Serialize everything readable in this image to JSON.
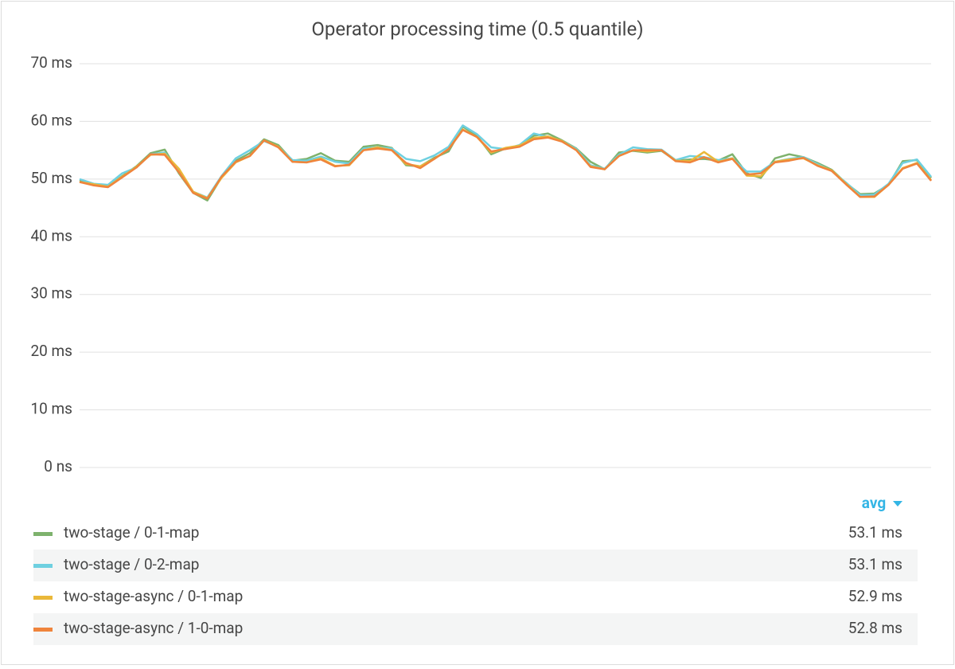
{
  "chart_data": {
    "type": "line",
    "title": "Operator processing time (0.5 quantile)",
    "ylim": [
      0,
      70
    ],
    "yticks": [
      {
        "value": 0,
        "label": "0 ns"
      },
      {
        "value": 10,
        "label": "10 ms"
      },
      {
        "value": 20,
        "label": "20 ms"
      },
      {
        "value": 30,
        "label": "30 ms"
      },
      {
        "value": 40,
        "label": "40 ms"
      },
      {
        "value": 50,
        "label": "50 ms"
      },
      {
        "value": 60,
        "label": "60 ms"
      },
      {
        "value": 70,
        "label": "70 ms"
      }
    ],
    "grid": true,
    "series": [
      {
        "name": "two-stage / 0-1-map",
        "color": "#7eb26d",
        "values": [
          49.8,
          49.0,
          48.7,
          50.5,
          52.2,
          54.5,
          55.1,
          51.0,
          47.6,
          46.3,
          50.3,
          53.2,
          54.5,
          56.9,
          55.9,
          53.2,
          53.5,
          54.5,
          53.2,
          53.0,
          55.6,
          55.9,
          55.4,
          52.4,
          52.2,
          53.7,
          54.8,
          59.1,
          57.5,
          54.3,
          55.3,
          55.8,
          57.5,
          57.9,
          56.7,
          55.3,
          53.0,
          51.7,
          54.6,
          54.9,
          54.6,
          54.9,
          53.2,
          53.4,
          53.5,
          53.2,
          54.3,
          51.0,
          50.2,
          53.6,
          54.3,
          53.8,
          52.8,
          51.6,
          49.3,
          47.4,
          47.5,
          49.0,
          53.1,
          53.3,
          50.2
        ]
      },
      {
        "name": "two-stage / 0-2-map",
        "color": "#6ed0e0",
        "values": [
          50.0,
          49.2,
          49.0,
          51.0,
          52.0,
          54.3,
          54.6,
          51.3,
          47.8,
          46.8,
          50.5,
          53.6,
          55.0,
          56.6,
          55.6,
          53.3,
          53.2,
          53.9,
          53.0,
          52.7,
          55.3,
          55.5,
          55.3,
          53.5,
          53.1,
          54.1,
          55.6,
          59.3,
          57.8,
          55.5,
          55.2,
          55.9,
          57.9,
          57.3,
          56.6,
          55.2,
          52.4,
          51.8,
          54.2,
          55.5,
          55.2,
          55.1,
          53.3,
          54.0,
          53.8,
          53.3,
          53.6,
          51.3,
          51.3,
          53.0,
          53.5,
          53.8,
          52.6,
          51.4,
          49.4,
          47.2,
          47.3,
          49.2,
          52.8,
          53.4,
          50.4
        ]
      },
      {
        "name": "two-stage-async / 0-1-map",
        "color": "#eab839",
        "values": [
          49.5,
          49.1,
          48.7,
          50.4,
          52.1,
          54.2,
          54.4,
          51.8,
          47.8,
          46.7,
          50.2,
          52.9,
          54.0,
          56.7,
          55.6,
          53.0,
          52.9,
          53.6,
          52.3,
          52.4,
          55.0,
          55.5,
          55.0,
          52.6,
          52.2,
          53.5,
          55.2,
          58.6,
          57.3,
          54.6,
          55.4,
          55.8,
          57.1,
          57.4,
          56.6,
          55.0,
          52.2,
          51.7,
          54.0,
          55.0,
          54.8,
          55.0,
          53.2,
          53.1,
          54.7,
          53.0,
          53.6,
          50.6,
          50.5,
          53.0,
          53.4,
          53.6,
          52.4,
          51.5,
          49.2,
          46.9,
          46.9,
          49.0,
          51.9,
          52.8,
          49.8
        ]
      },
      {
        "name": "two-stage-async / 1-0-map",
        "color": "#ef843c",
        "values": [
          49.5,
          48.9,
          48.6,
          50.3,
          52.0,
          54.3,
          54.2,
          51.2,
          47.6,
          46.6,
          50.4,
          53.0,
          54.0,
          56.7,
          55.5,
          53.0,
          52.9,
          53.4,
          52.2,
          52.5,
          55.0,
          55.3,
          55.0,
          52.8,
          51.9,
          53.5,
          55.2,
          58.5,
          57.3,
          54.8,
          55.2,
          55.6,
          56.9,
          57.2,
          56.5,
          55.0,
          52.1,
          51.7,
          54.0,
          55.0,
          55.0,
          55.0,
          53.1,
          52.9,
          53.8,
          52.9,
          53.5,
          50.8,
          51.0,
          52.9,
          53.2,
          53.7,
          52.3,
          51.4,
          49.1,
          46.9,
          47.0,
          49.0,
          51.8,
          52.7,
          49.7
        ]
      }
    ],
    "legend": {
      "header": "avg",
      "values": [
        53.1,
        53.1,
        52.9,
        52.8
      ],
      "value_labels": [
        "53.1 ms",
        "53.1 ms",
        "52.9 ms",
        "52.8 ms"
      ]
    }
  }
}
